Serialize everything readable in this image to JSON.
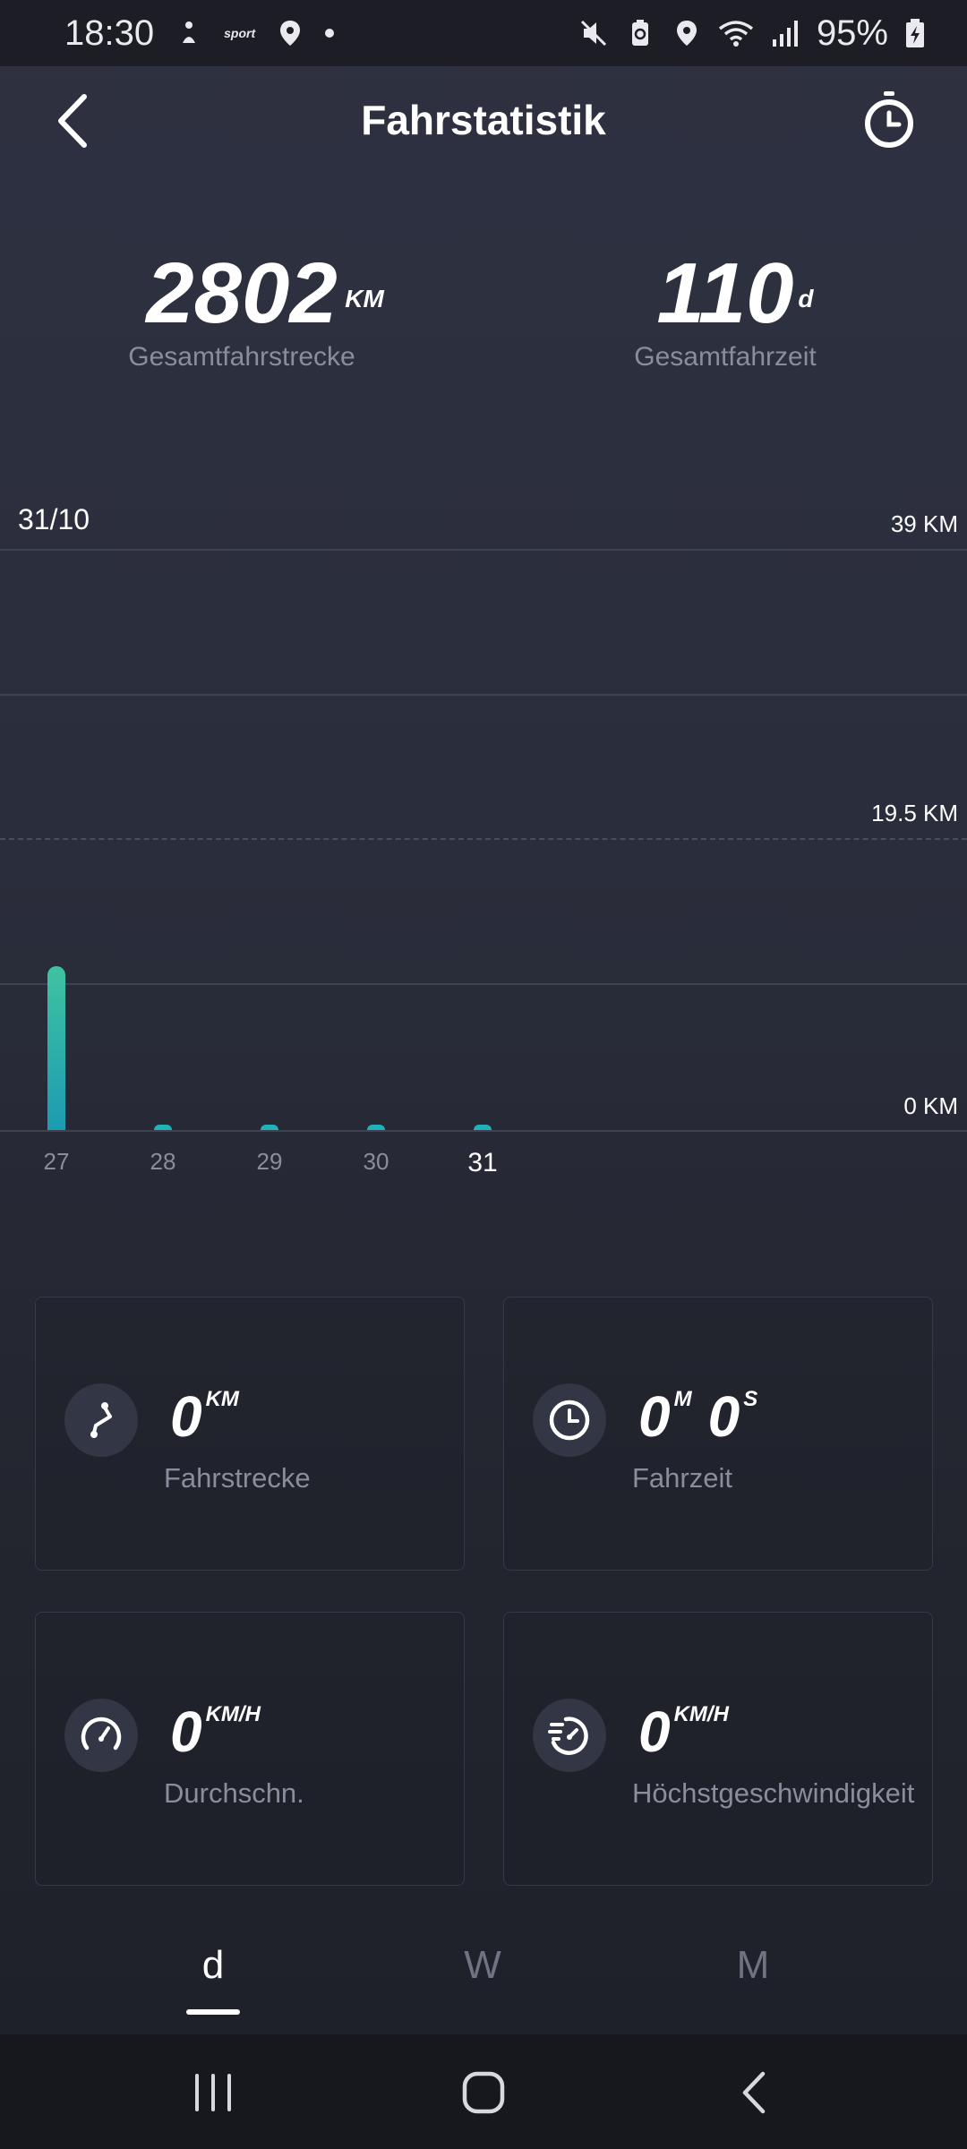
{
  "status_bar": {
    "time": "18:30",
    "app_badge": "sport",
    "battery": "95%",
    "icons": [
      "bike-rider-icon",
      "location-pin-icon",
      "mute-icon",
      "battery-saver-icon",
      "wifi-icon",
      "signal-icon",
      "battery-charging-icon"
    ]
  },
  "header": {
    "title": "Fahrstatistik",
    "back_icon": "chevron-left-icon",
    "timer_icon": "stopwatch-icon"
  },
  "totals": {
    "distance": {
      "value": "2802",
      "unit": "KM",
      "label": "Gesamtfahrstrecke"
    },
    "time": {
      "value": "110",
      "unit": "d",
      "label": "Gesamtfahrzeit"
    }
  },
  "chart_data": {
    "type": "bar",
    "selected_date": "31/10",
    "categories": [
      "27",
      "28",
      "29",
      "30",
      "31"
    ],
    "values": [
      11,
      0.3,
      0.3,
      0.3,
      0.3
    ],
    "ylim": [
      0,
      39
    ],
    "y_ticks": [
      "39 KM",
      "19.5 KM",
      "0 KM"
    ],
    "y_tick_values": [
      39,
      19.5,
      0
    ],
    "selected_category": "31",
    "bar_color_top": "#3fc3a1",
    "bar_color_bottom": "#1c9bb2",
    "grid": true
  },
  "cards": {
    "distance": {
      "value": "0",
      "unit": "KM",
      "label": "Fahrstrecke",
      "icon": "route-icon"
    },
    "time": {
      "value_min": "0",
      "unit_min": "M",
      "value_sec": "0",
      "unit_sec": "S",
      "label": "Fahrzeit",
      "icon": "clock-icon"
    },
    "avg_speed": {
      "value": "0",
      "unit": "KM/H",
      "label": "Durchschn.",
      "icon": "speedometer-icon"
    },
    "max_speed": {
      "value": "0",
      "unit": "KM/H",
      "label": "Höchstgeschwindigkeit",
      "icon": "fast-speed-icon"
    }
  },
  "tabs": [
    {
      "label": "d",
      "active": true
    },
    {
      "label": "W",
      "active": false
    },
    {
      "label": "M",
      "active": false
    }
  ],
  "nav": {
    "recents_icon": "recents-icon",
    "home_icon": "home-icon",
    "back_icon": "back-icon"
  }
}
